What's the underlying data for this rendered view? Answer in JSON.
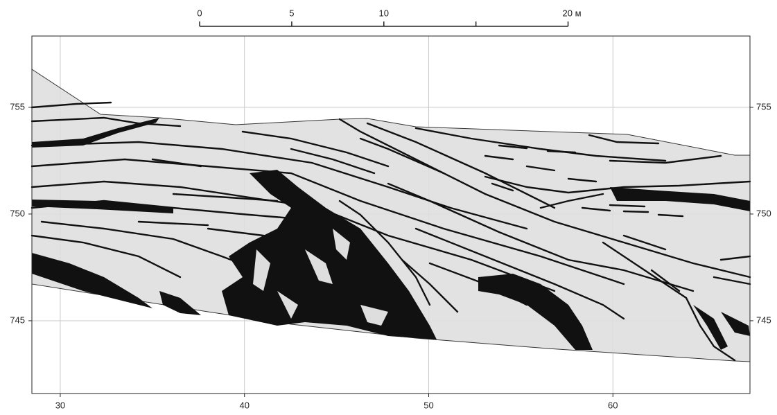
{
  "axes": {
    "xlim": [
      28.46,
      67.44
    ],
    "ylim": [
      741.59,
      758.34
    ],
    "xticks": [
      30,
      40,
      50,
      60
    ],
    "yticks": [
      745,
      750,
      755
    ],
    "grid": true
  },
  "scale_bar": {
    "ticks": [
      0,
      5,
      10,
      15,
      20
    ],
    "tick_labels": [
      "0",
      "5",
      "10",
      null,
      "20 м"
    ]
  }
}
